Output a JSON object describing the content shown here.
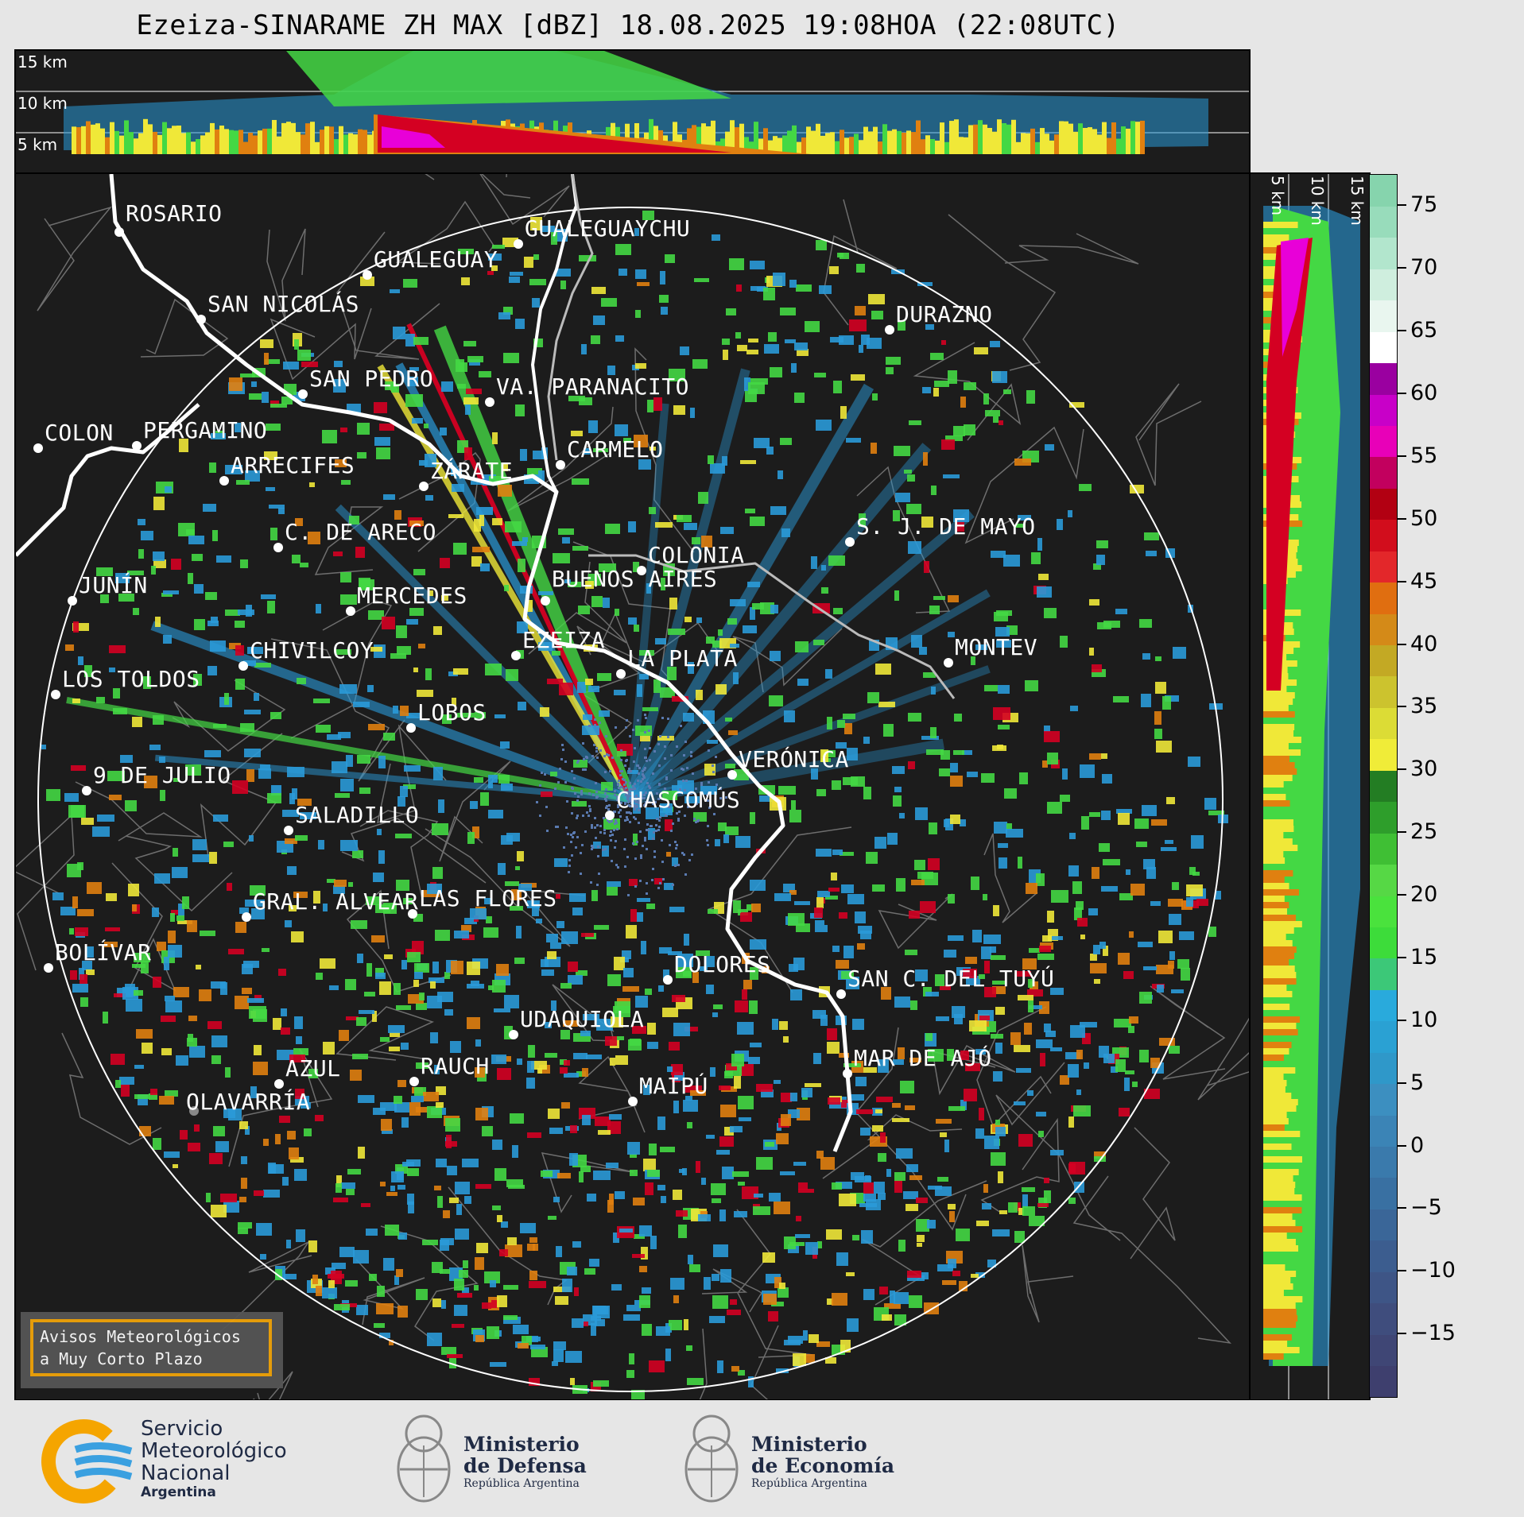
{
  "title": "Ezeiza-SINARAME ZH MAX [dBZ] 18.08.2025 19:08HOA (22:08UTC)",
  "top_panel": {
    "height_labels": [
      "15 km",
      "10 km",
      "5 km"
    ]
  },
  "right_panel": {
    "height_labels": [
      "5 km",
      "10 km",
      "15 km"
    ]
  },
  "colorbar": {
    "unit": "dBZ",
    "ticks": [
      "75",
      "70",
      "65",
      "60",
      "55",
      "50",
      "45",
      "40",
      "35",
      "30",
      "25",
      "20",
      "15",
      "10",
      "5",
      "0",
      "−5",
      "−10",
      "−15"
    ],
    "colors": {
      "above_60": "#8fe0c0",
      "white": "#ffffff",
      "purple": "#9d00a0",
      "magenta": "#e800d8",
      "red": "#d40022",
      "orange": "#e08010",
      "yellow": "#f0e838",
      "dark_green": "#1e7a1e",
      "green": "#44d844",
      "blue": "#2a9ad8",
      "slate": "#3c4a80"
    }
  },
  "cities": [
    {
      "name": "ROSARIO"
    },
    {
      "name": "GUALEGUAYCHU"
    },
    {
      "name": "GUALEGUAY"
    },
    {
      "name": "SAN NICOLÁS"
    },
    {
      "name": "DURAZNO"
    },
    {
      "name": "SAN PEDRO"
    },
    {
      "name": "VA. PARANACITO"
    },
    {
      "name": "COLON"
    },
    {
      "name": "PERGAMINO"
    },
    {
      "name": "CARMELO"
    },
    {
      "name": "ARRECIFES"
    },
    {
      "name": "ZÁRATE"
    },
    {
      "name": "C. DE ARECO"
    },
    {
      "name": "S. J. DE MAYO"
    },
    {
      "name": "COLONIA"
    },
    {
      "name": "JUNÍN"
    },
    {
      "name": "MERCEDES"
    },
    {
      "name": "BUENOS AIRES"
    },
    {
      "name": "EZEIZA"
    },
    {
      "name": "MONTEV"
    },
    {
      "name": "CHIVILCOY"
    },
    {
      "name": "LA PLATA"
    },
    {
      "name": "LOS TOLDOS"
    },
    {
      "name": "LOBOS"
    },
    {
      "name": "VERÓNICA"
    },
    {
      "name": "9 DE JULIO"
    },
    {
      "name": "CHASCOMÚS"
    },
    {
      "name": "SALADILLO"
    },
    {
      "name": "GRAL. ALVEAR"
    },
    {
      "name": "LAS FLORES"
    },
    {
      "name": "BOLÍVAR"
    },
    {
      "name": "DOLORES"
    },
    {
      "name": "SAN C. DEL TUYÚ"
    },
    {
      "name": "UDAQUIOLA"
    },
    {
      "name": "MAR DE AJÓ"
    },
    {
      "name": "AZUL"
    },
    {
      "name": "RAUCH"
    },
    {
      "name": "OLAVARRÍA"
    },
    {
      "name": "MAIPÚ"
    }
  ],
  "avisos": {
    "line1": "Avisos Meteorológicos",
    "line2": "a Muy Corto Plazo"
  },
  "footer": {
    "smn": {
      "line1": "Servicio",
      "line2": "Meteorológico",
      "line3": "Nacional",
      "line4": "Argentina"
    },
    "defensa": {
      "line1": "Ministerio",
      "line2": "de Defensa",
      "line3": "República Argentina"
    },
    "economia": {
      "line1": "Ministerio",
      "line2": "de Economía",
      "line3": "República Argentina"
    }
  }
}
